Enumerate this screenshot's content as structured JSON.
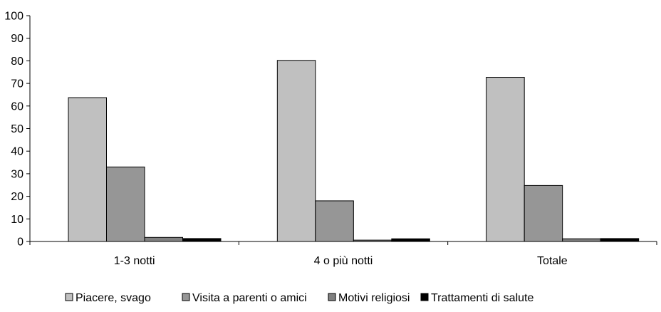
{
  "chart_data": {
    "type": "bar",
    "title": "",
    "xlabel": "",
    "ylabel": "",
    "ylim": [
      0,
      100
    ],
    "yticks": [
      0,
      10,
      20,
      30,
      40,
      50,
      60,
      70,
      80,
      90,
      100
    ],
    "grid": false,
    "legend_position": "bottom",
    "categories": [
      "1-3 notti",
      "4 o più notti",
      "Totale"
    ],
    "series": [
      {
        "name": "Piacere, svago",
        "color": "#c0c0c0",
        "values": [
          63.7,
          80.2,
          72.7
        ]
      },
      {
        "name": "Visita a parenti o amici",
        "color": "#969696",
        "values": [
          33.0,
          18.0,
          24.8
        ]
      },
      {
        "name": "Motivi religiosi",
        "color": "#808080",
        "values": [
          1.8,
          0.6,
          1.2
        ]
      },
      {
        "name": "Trattamenti di salute",
        "color": "#000000",
        "values": [
          1.3,
          1.2,
          1.3
        ]
      }
    ]
  }
}
